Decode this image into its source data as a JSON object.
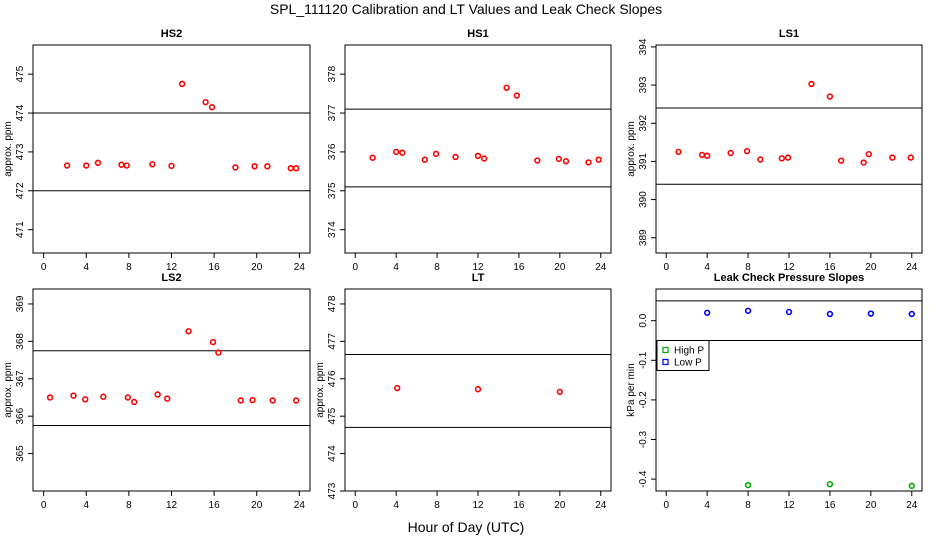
{
  "figure": {
    "title": "SPL_111120  Calibration and LT Values and Leak Check Slopes",
    "xlabel": "Hour of Day (UTC)"
  },
  "colors": {
    "red": "#ff0000",
    "green": "#00aa00",
    "blue": "#0000ff",
    "axis": "#000000"
  },
  "chart_data": [
    {
      "type": "scatter",
      "title": "HS2",
      "ylabel": "approx. ppm",
      "xlim": [
        -1,
        25
      ],
      "ylim": [
        470.4,
        475.75
      ],
      "xticks": [
        0,
        4,
        8,
        12,
        16,
        20,
        24
      ],
      "yticks": [
        471,
        472,
        473,
        474,
        475
      ],
      "hlines": [
        474.0,
        472.0
      ],
      "series": [
        {
          "name": "HS2",
          "color": "#ff0000",
          "x": [
            2.2,
            4.0,
            5.1,
            7.3,
            7.8,
            10.2,
            12.0,
            13.0,
            15.2,
            15.8,
            18.0,
            19.8,
            21.0,
            23.2,
            23.7
          ],
          "y": [
            472.65,
            472.65,
            472.72,
            472.67,
            472.65,
            472.68,
            472.64,
            474.75,
            474.28,
            474.15,
            472.6,
            472.63,
            472.63,
            472.58,
            472.58
          ]
        }
      ]
    },
    {
      "type": "scatter",
      "title": "HS1",
      "ylabel": "",
      "xlim": [
        -1,
        25
      ],
      "ylim": [
        373.4,
        378.75
      ],
      "xticks": [
        0,
        4,
        8,
        12,
        16,
        20,
        24
      ],
      "yticks": [
        374,
        375,
        376,
        377,
        378
      ],
      "hlines": [
        377.1,
        375.1
      ],
      "series": [
        {
          "name": "HS1",
          "color": "#ff0000",
          "x": [
            1.7,
            4.0,
            4.6,
            6.8,
            7.9,
            9.8,
            12.0,
            12.6,
            14.8,
            15.8,
            17.8,
            19.9,
            20.6,
            22.8,
            23.8
          ],
          "y": [
            375.85,
            376.0,
            375.98,
            375.8,
            375.95,
            375.87,
            375.9,
            375.83,
            377.65,
            377.45,
            375.78,
            375.82,
            375.76,
            375.73,
            375.8
          ]
        }
      ]
    },
    {
      "type": "scatter",
      "title": "LS1",
      "ylabel": "approx. ppm",
      "xlim": [
        -1,
        25
      ],
      "ylim": [
        388.6,
        394.05
      ],
      "xticks": [
        0,
        4,
        8,
        12,
        16,
        20,
        24
      ],
      "yticks": [
        389,
        390,
        391,
        392,
        393,
        394
      ],
      "hlines": [
        392.4,
        390.4
      ],
      "series": [
        {
          "name": "LS1",
          "color": "#ff0000",
          "x": [
            1.2,
            3.5,
            4.0,
            6.3,
            7.9,
            9.2,
            11.3,
            11.9,
            14.2,
            16.0,
            17.1,
            19.3,
            19.8,
            22.1,
            23.9
          ],
          "y": [
            391.25,
            391.17,
            391.15,
            391.22,
            391.27,
            391.05,
            391.08,
            391.1,
            393.03,
            392.7,
            391.02,
            390.97,
            391.19,
            391.1,
            391.1
          ]
        }
      ]
    },
    {
      "type": "scatter",
      "title": "LS2",
      "ylabel": "approx. ppm",
      "xlim": [
        -1,
        25
      ],
      "ylim": [
        364.0,
        369.4
      ],
      "xticks": [
        0,
        4,
        8,
        12,
        16,
        20,
        24
      ],
      "yticks": [
        365,
        366,
        367,
        368,
        369
      ],
      "hlines": [
        367.75,
        365.75
      ],
      "series": [
        {
          "name": "LS2",
          "color": "#ff0000",
          "x": [
            0.6,
            2.8,
            3.9,
            5.6,
            7.9,
            8.5,
            10.7,
            11.6,
            13.6,
            15.9,
            16.4,
            18.5,
            19.6,
            21.5,
            23.7
          ],
          "y": [
            366.5,
            366.55,
            366.45,
            366.52,
            366.5,
            366.38,
            366.58,
            366.47,
            368.27,
            367.98,
            367.7,
            366.42,
            366.43,
            366.42,
            366.42
          ]
        }
      ]
    },
    {
      "type": "scatter",
      "title": "LT",
      "ylabel": "approx. ppm",
      "xlim": [
        -1,
        25
      ],
      "ylim": [
        473.0,
        478.4
      ],
      "xticks": [
        0,
        4,
        8,
        12,
        16,
        20,
        24
      ],
      "yticks": [
        473,
        474,
        475,
        476,
        477,
        478
      ],
      "hlines": [
        476.65,
        474.7
      ],
      "series": [
        {
          "name": "LT",
          "color": "#ff0000",
          "x": [
            4.1,
            12.0,
            20.0
          ],
          "y": [
            475.75,
            475.72,
            475.65
          ]
        }
      ]
    },
    {
      "type": "scatter",
      "title": "Leak Check Pressure Slopes",
      "ylabel": "kPa per min",
      "xlim": [
        -1,
        25
      ],
      "ylim": [
        -0.43,
        0.08
      ],
      "xticks": [
        0,
        4,
        8,
        12,
        16,
        20,
        24
      ],
      "yticks": [
        0.0,
        -0.1,
        -0.2,
        -0.3,
        -0.4
      ],
      "ytick_labels": [
        "0.0",
        "-0.1",
        "-0.2",
        "-0.3",
        "-0.4"
      ],
      "hlines": [
        0.05,
        -0.05
      ],
      "legend": {
        "placement": "upper-left",
        "entries": [
          "High P",
          "Low P"
        ]
      },
      "series": [
        {
          "name": "High P",
          "color": "#00aa00",
          "x": [
            8,
            16,
            24
          ],
          "y": [
            -0.415,
            -0.413,
            -0.417
          ]
        },
        {
          "name": "Low P",
          "color": "#0000ff",
          "x": [
            4,
            8,
            12,
            16,
            20,
            24
          ],
          "y": [
            0.02,
            0.025,
            0.022,
            0.017,
            0.018,
            0.017
          ]
        }
      ]
    }
  ]
}
